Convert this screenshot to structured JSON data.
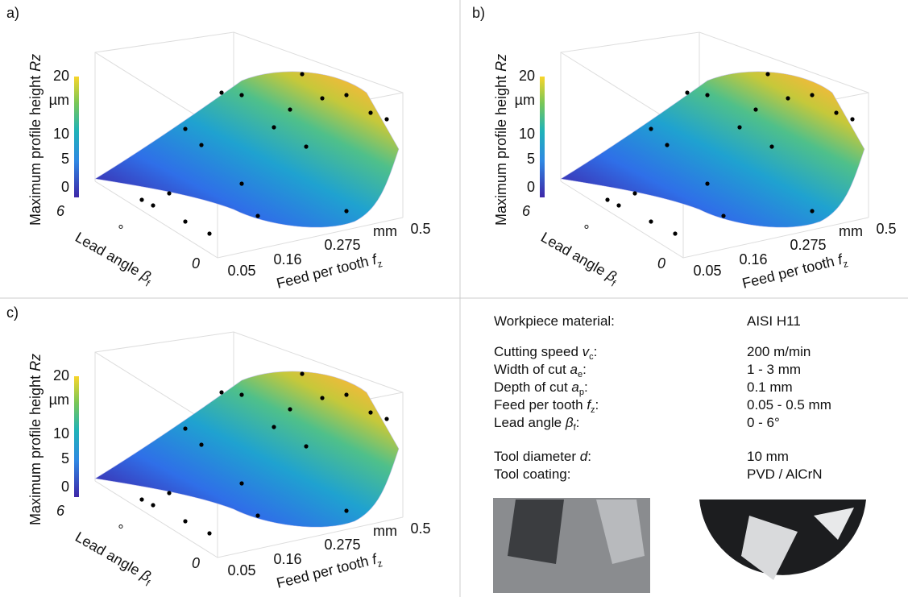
{
  "panels": [
    {
      "label": "a)",
      "zlabel": "Maximum profile height ",
      "zvar": "Rz",
      "zticks": [
        "20",
        "µm",
        "10",
        "5",
        "0"
      ],
      "lead_label": "Lead angle ",
      "lead_var": "β",
      "lead_sub": "f",
      "lead_ticks": [
        "6",
        "°",
        "0"
      ],
      "feed_label": "Feed per tooth ",
      "feed_var": "f",
      "feed_sub": "z",
      "feed_ticks": [
        "0.05",
        "0.16",
        "0.275",
        "mm",
        "0.5"
      ]
    },
    {
      "label": "b)",
      "zlabel": "Maximum profile height ",
      "zvar": "Rz",
      "zticks": [
        "20",
        "µm",
        "10",
        "5",
        "0"
      ],
      "lead_label": "Lead angle ",
      "lead_var": "β",
      "lead_sub": "f",
      "lead_ticks": [
        "6",
        "°",
        "0"
      ],
      "feed_label": "Feed per tooth ",
      "feed_var": "f",
      "feed_sub": "z",
      "feed_ticks": [
        "0.05",
        "0.16",
        "0.275",
        "mm",
        "0.5"
      ]
    },
    {
      "label": "c)",
      "zlabel": "Maximum profile height ",
      "zvar": "Rz",
      "zticks": [
        "20",
        "µm",
        "10",
        "5",
        "0"
      ],
      "lead_label": "Lead angle ",
      "lead_var": "β",
      "lead_sub": "f",
      "lead_ticks": [
        "6",
        "°",
        "0"
      ],
      "feed_label": "Feed per tooth ",
      "feed_var": "f",
      "feed_sub": "z",
      "feed_ticks": [
        "0.05",
        "0.16",
        "0.275",
        "mm",
        "0.5"
      ]
    }
  ],
  "table": {
    "rows": [
      {
        "label": "Workpiece material:",
        "value": "AISI H11"
      },
      {
        "label": "Cutting speed ",
        "symbol": "v",
        "sub": "c",
        "suffix": ":",
        "value": "200 m/min"
      },
      {
        "label": "Width of cut ",
        "symbol": "a",
        "sub": "e",
        "suffix": ":",
        "value": "1 - 3 mm"
      },
      {
        "label": "Depth of cut ",
        "symbol": "a",
        "sub": "p",
        "suffix": ":",
        "value": "0.1 mm"
      },
      {
        "label": "Feed per tooth ",
        "symbol": "f",
        "sub": "z",
        "suffix": ":",
        "value": "0.05 - 0.5 mm"
      },
      {
        "label": "Lead angle ",
        "symbol": "β",
        "sub": "f",
        "suffix": ":",
        "value": "0 - 6°"
      },
      {
        "label": "Tool diameter ",
        "symbol": "d",
        "suffix": ":",
        "value": "10 mm"
      },
      {
        "label": "Tool coating:",
        "value": "PVD / AlCrN"
      }
    ]
  }
}
